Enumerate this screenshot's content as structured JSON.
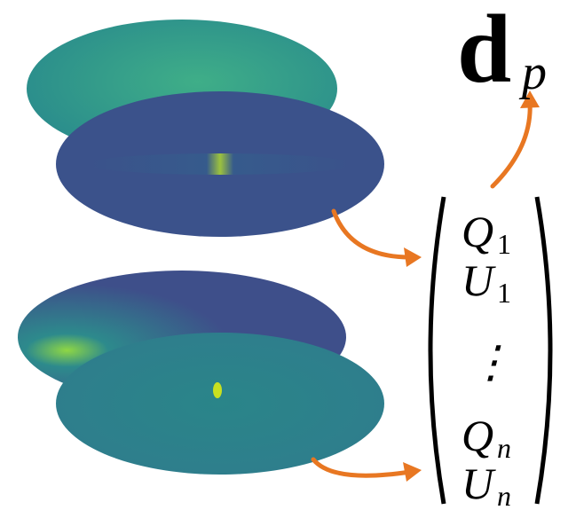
{
  "output": {
    "symbol": "d",
    "subscript": "p"
  },
  "vector": {
    "entries": [
      {
        "symbol": "Q",
        "subscript": "1"
      },
      {
        "symbol": "U",
        "subscript": "1"
      },
      {
        "symbol": "⋮",
        "subscript": ""
      },
      {
        "symbol": "Q",
        "subscript": "n"
      },
      {
        "symbol": "U",
        "subscript": "n"
      }
    ]
  }
}
